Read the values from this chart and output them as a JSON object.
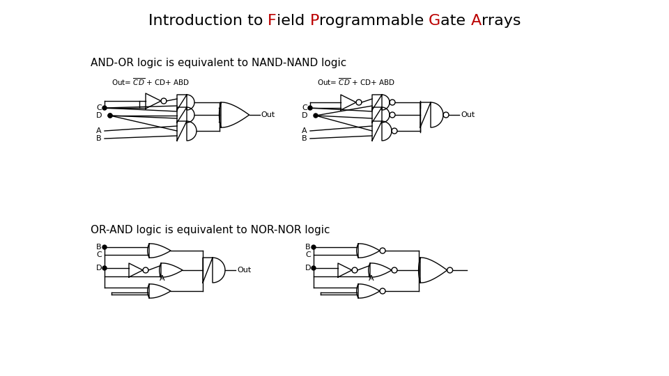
{
  "title_parts": [
    {
      "text": "Introduction to ",
      "color": "#000000",
      "bold": false
    },
    {
      "text": "F",
      "color": "#bb0000",
      "bold": false
    },
    {
      "text": "ield ",
      "color": "#000000",
      "bold": false
    },
    {
      "text": "P",
      "color": "#bb0000",
      "bold": false
    },
    {
      "text": "rogrammable ",
      "color": "#000000",
      "bold": false
    },
    {
      "text": "G",
      "color": "#bb0000",
      "bold": false
    },
    {
      "text": "ate ",
      "color": "#000000",
      "bold": false
    },
    {
      "text": "A",
      "color": "#bb0000",
      "bold": false
    },
    {
      "text": "rrays",
      "color": "#000000",
      "bold": false
    }
  ],
  "label1": "AND-OR logic is equivalent to NAND-NAND logic",
  "label2": "OR-AND logic is equivalent to NOR-NOR logic",
  "bg_color": "#ffffff",
  "title_fontsize": 16,
  "label_fontsize": 11
}
